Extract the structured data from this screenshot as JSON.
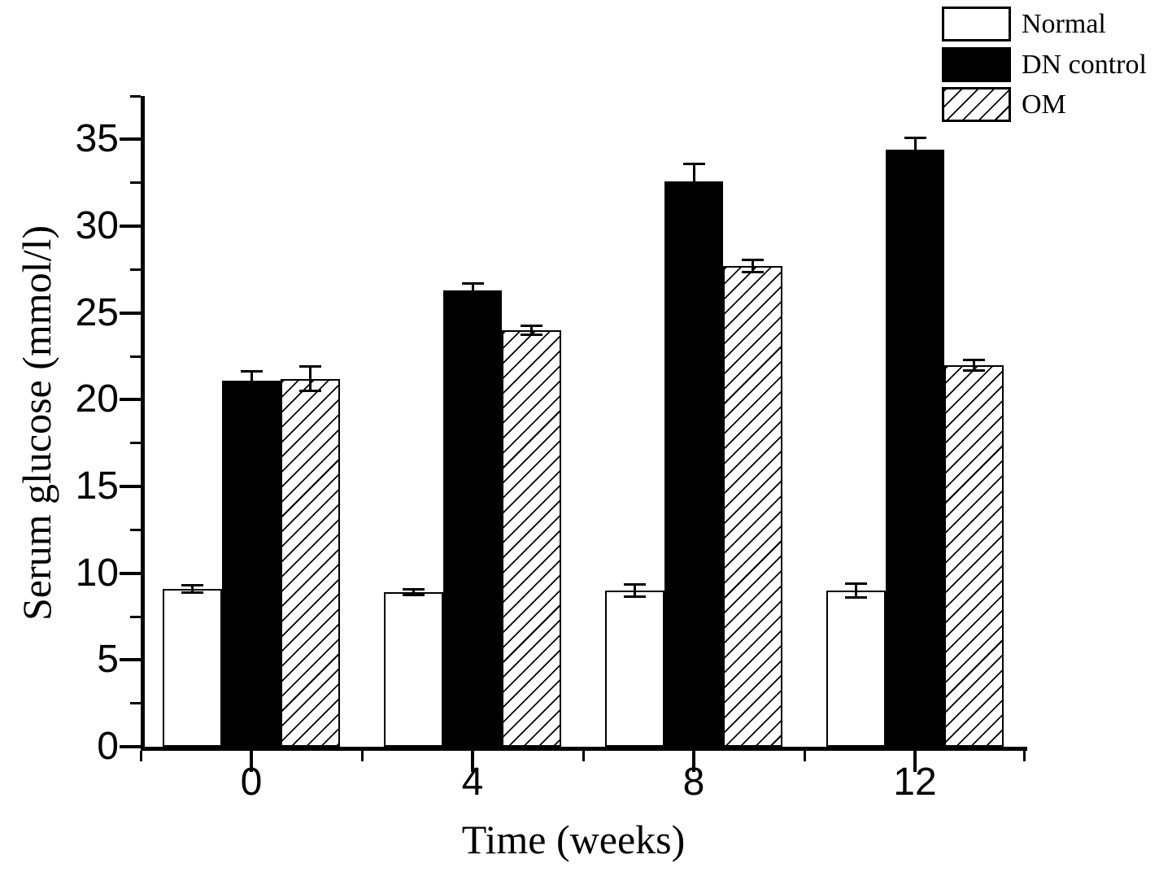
{
  "chart_data": {
    "type": "bar",
    "title": "",
    "xlabel": "Time (weeks)",
    "ylabel": "Serum glucose (mmol/l)",
    "categories": [
      "0",
      "4",
      "8",
      "12"
    ],
    "series": [
      {
        "name": "Normal",
        "fill": "white",
        "values": [
          9.1,
          8.9,
          9.0,
          9.0
        ],
        "errors": [
          0.2,
          0.15,
          0.35,
          0.4
        ]
      },
      {
        "name": "DN control",
        "fill": "black",
        "values": [
          21.1,
          26.3,
          32.6,
          34.4
        ],
        "errors": [
          0.55,
          0.4,
          1.0,
          0.7
        ]
      },
      {
        "name": "OM",
        "fill": "hatch",
        "values": [
          21.2,
          24.0,
          27.7,
          22.0
        ],
        "errors": [
          0.7,
          0.25,
          0.35,
          0.3
        ]
      }
    ],
    "ylim": [
      0,
      37.5
    ],
    "y_major_ticks": [
      0,
      5,
      10,
      15,
      20,
      25,
      30,
      35
    ],
    "y_minor_step": 2.5,
    "grid": false,
    "error_bars": true,
    "legend": {
      "position": "top-right",
      "entries": [
        "Normal",
        "DN control",
        "OM"
      ]
    },
    "colors": {
      "foreground": "#000000",
      "background": "#ffffff"
    }
  }
}
